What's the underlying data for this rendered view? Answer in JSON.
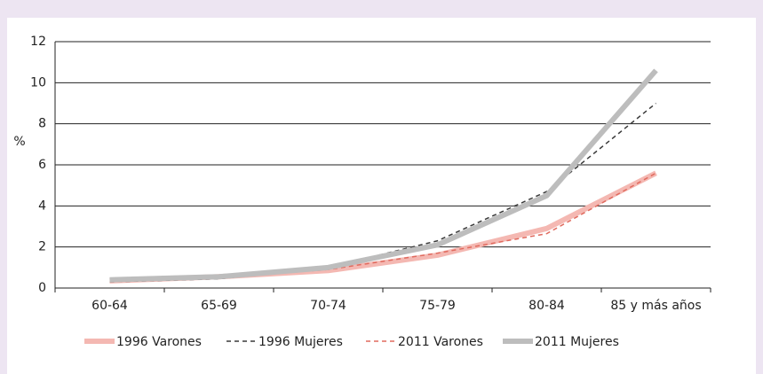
{
  "chart_data": {
    "type": "line",
    "y_label": "%",
    "categories": [
      "60-64",
      "65-69",
      "70-74",
      "75-79",
      "80-84",
      "85 y más años"
    ],
    "series": [
      {
        "name": "1996 Varones",
        "color": "#f4b8b2",
        "width": 6,
        "dash": false,
        "values": [
          0.35,
          0.55,
          0.85,
          1.6,
          2.9,
          5.6
        ]
      },
      {
        "name": "1996 Mujeres",
        "color": "#3a3a3a",
        "width": 1.5,
        "dash": true,
        "values": [
          0.3,
          0.45,
          1.0,
          2.3,
          4.7,
          9.0
        ]
      },
      {
        "name": "2011 Varones",
        "color": "#e06a5e",
        "width": 1.5,
        "dash": true,
        "values": [
          0.3,
          0.5,
          0.9,
          1.7,
          2.65,
          5.6
        ]
      },
      {
        "name": "2011 Mujeres",
        "color": "#bdbdbd",
        "width": 6,
        "dash": false,
        "values": [
          0.4,
          0.55,
          1.0,
          2.1,
          4.5,
          10.6
        ]
      }
    ],
    "ylim": [
      0,
      12
    ],
    "yticks": [
      0,
      2,
      4,
      6,
      8,
      10,
      12
    ],
    "grid": true
  }
}
